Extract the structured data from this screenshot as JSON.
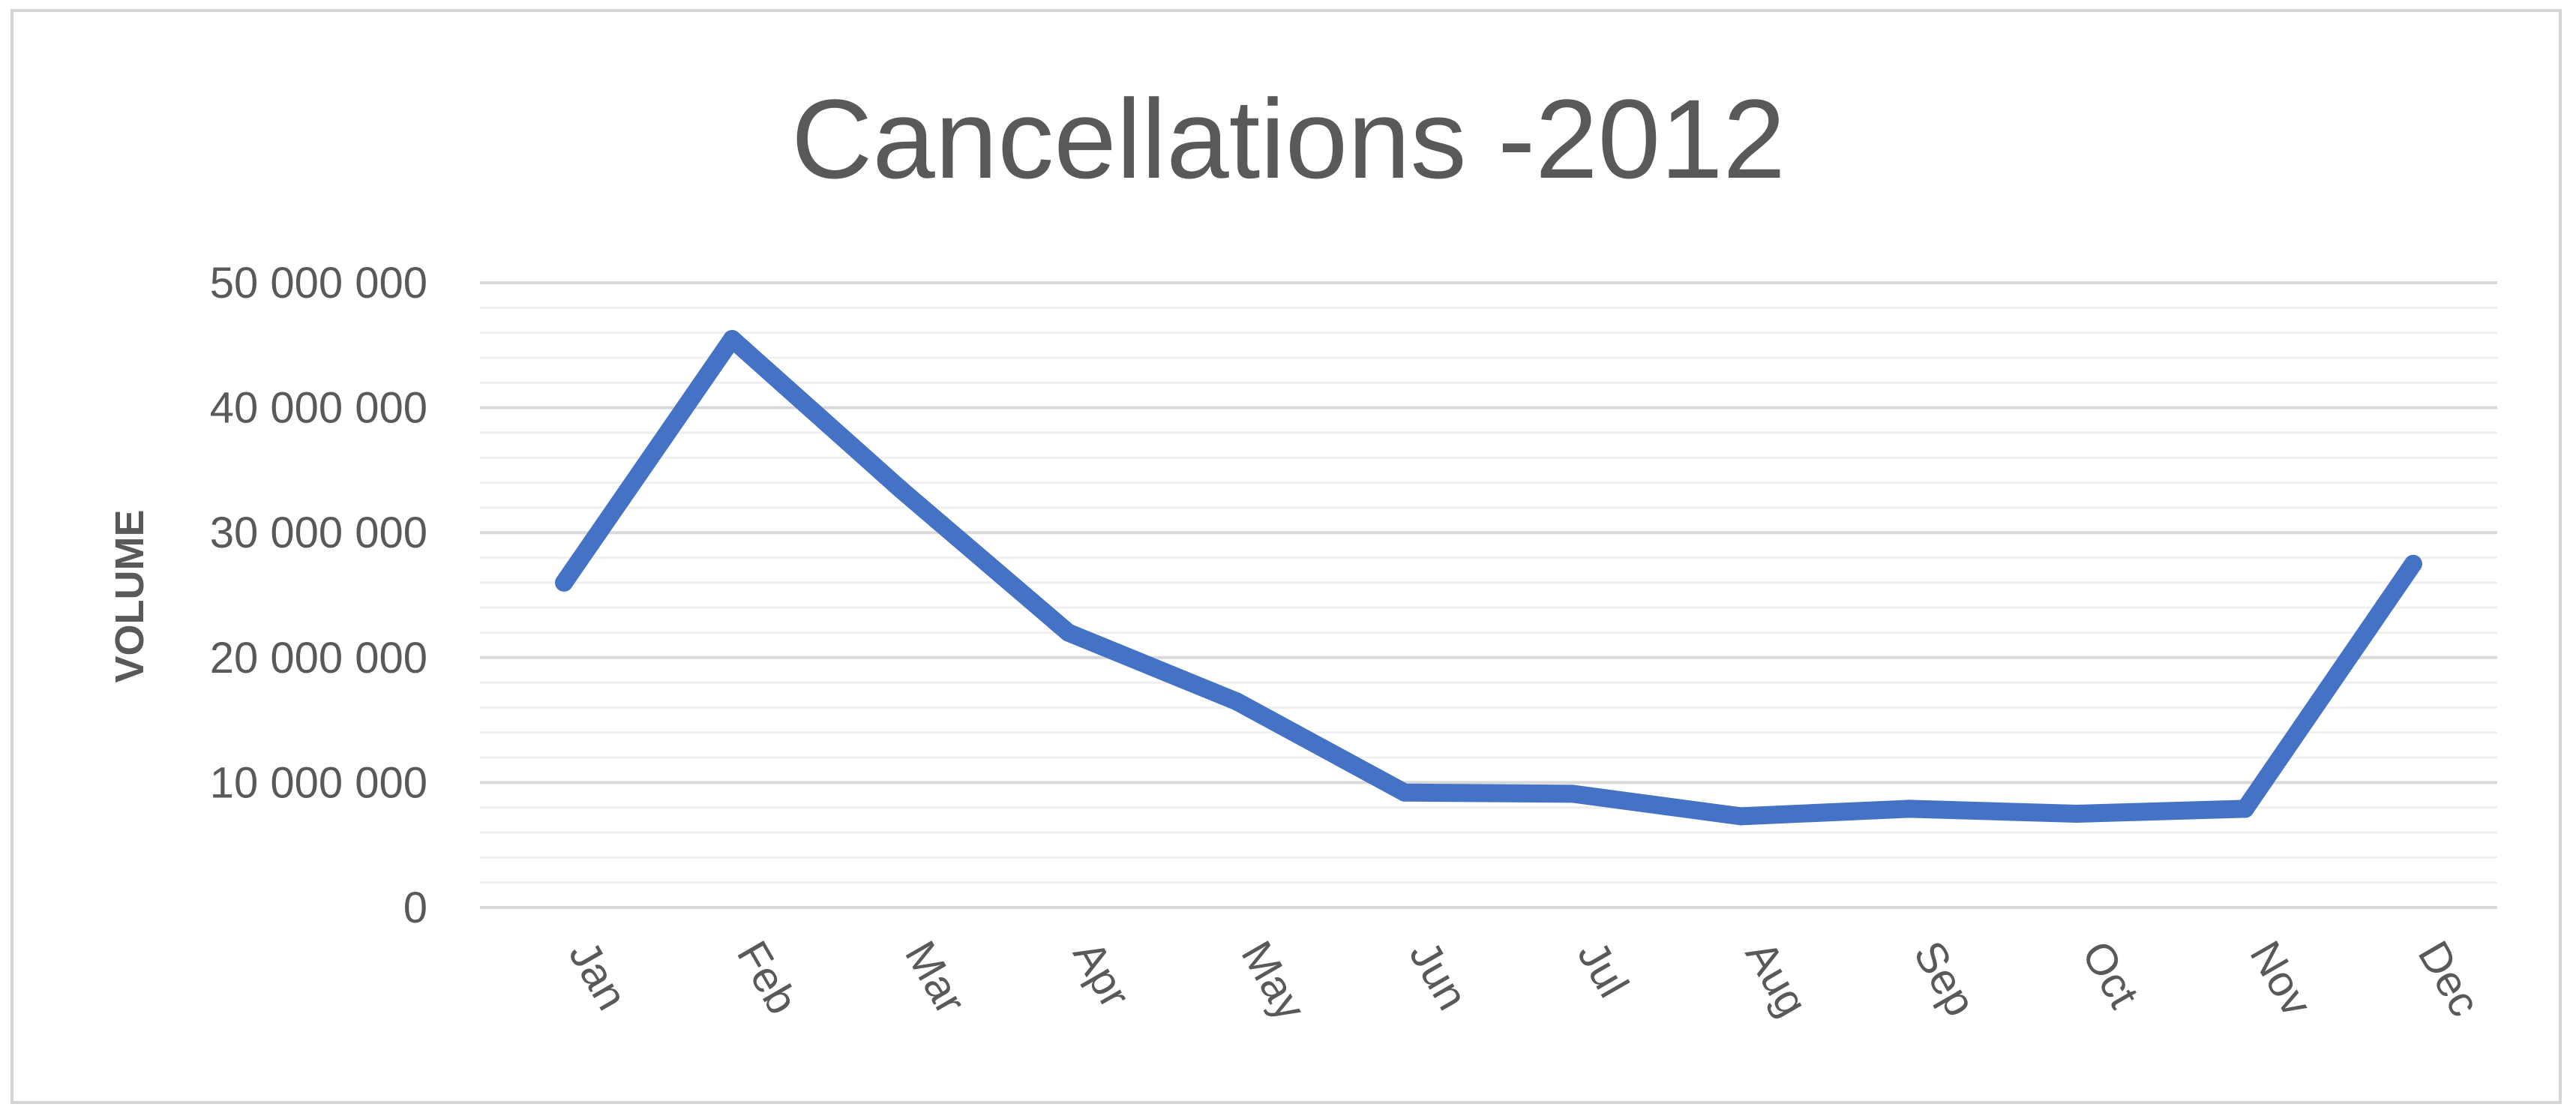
{
  "chart_data": {
    "type": "line",
    "title": "Cancellations -2012",
    "xlabel": "",
    "ylabel": "VOLUME",
    "categories": [
      "Jan",
      "Feb",
      "Mar",
      "Apr",
      "May",
      "Jun",
      "Jul",
      "Aug",
      "Sep",
      "Oct",
      "Nov",
      "Dec"
    ],
    "y_tick_labels": [
      "0",
      "10 000 000",
      "20 000 000",
      "30 000 000",
      "40 000 000",
      "50 000 000"
    ],
    "y_ticks": [
      0,
      10000000,
      20000000,
      30000000,
      40000000,
      50000000
    ],
    "ylim": [
      0,
      50000000
    ],
    "minor_gridline_step": 2000000,
    "grid": true,
    "legend": "none",
    "series": [
      {
        "values": [
          26000000,
          45500000,
          33500000,
          22000000,
          16500000,
          9200000,
          9100000,
          7300000,
          7900000,
          7500000,
          7900000,
          27500000
        ],
        "color": "#4472c4"
      }
    ],
    "colors": {
      "major_grid": "#d9d9d9",
      "minor_grid": "#efefef",
      "text": "#595959",
      "frame": "#d4d4d4"
    }
  }
}
